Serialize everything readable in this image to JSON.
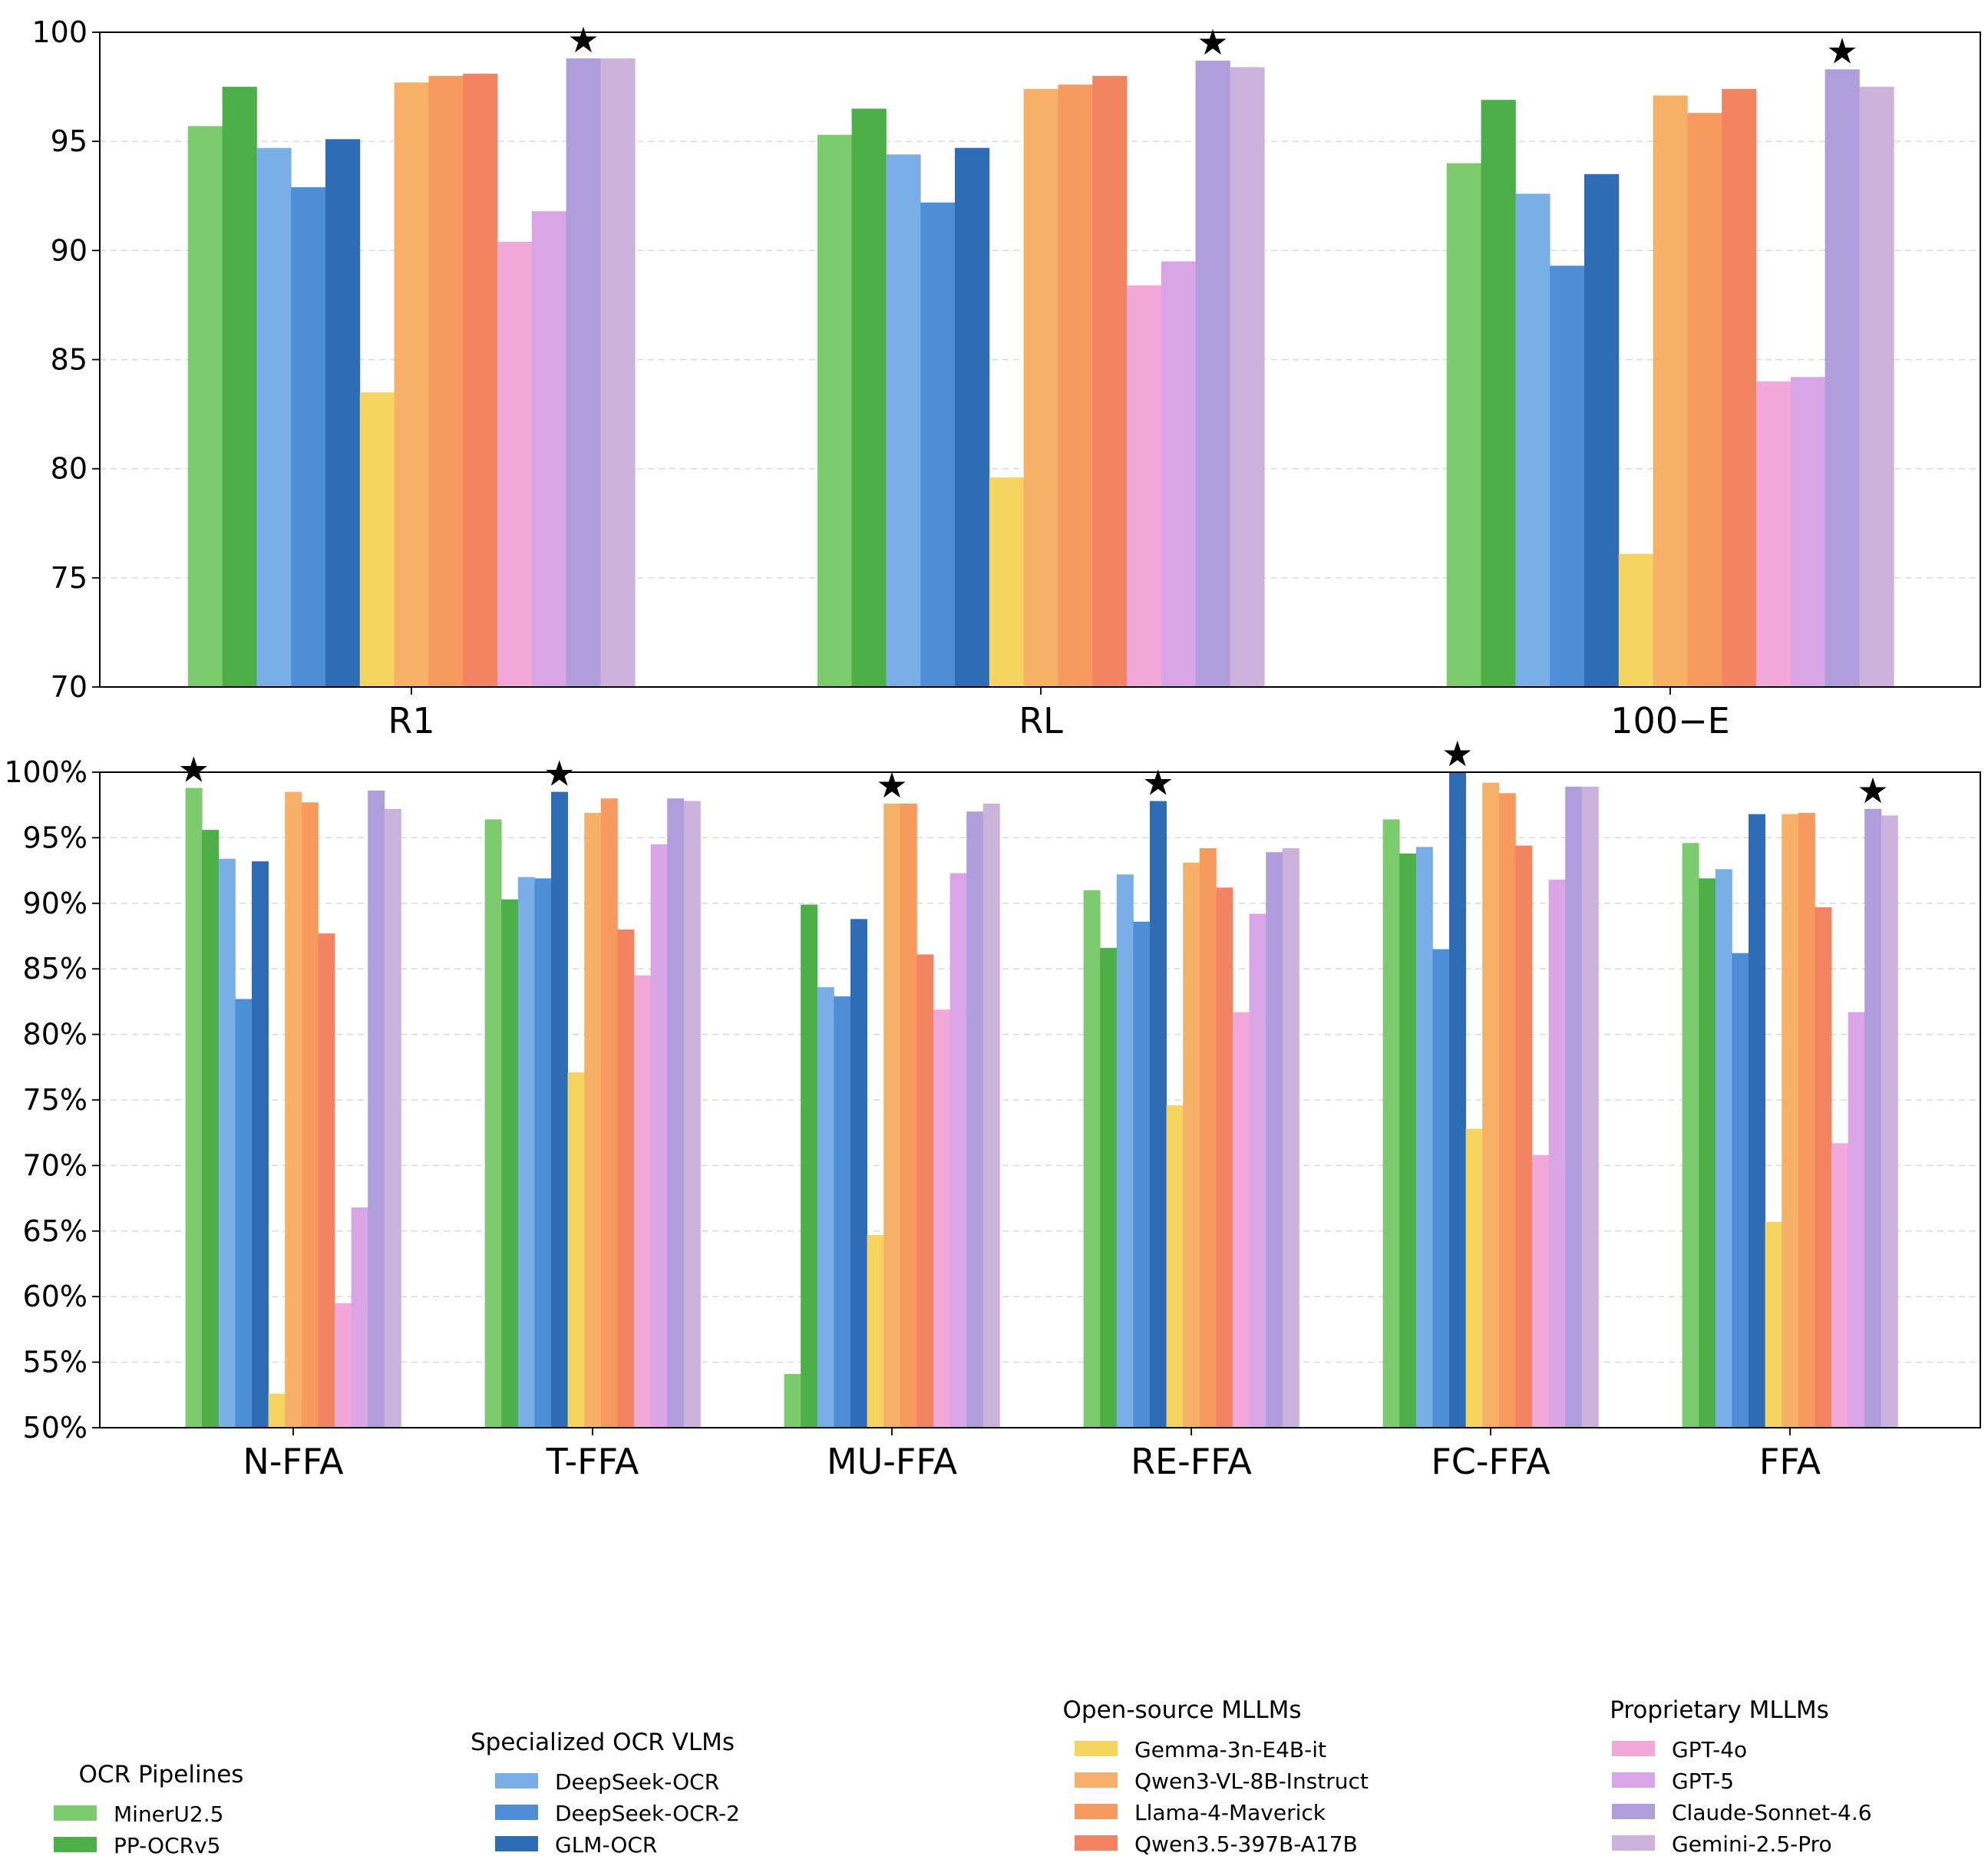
{
  "chart_data": [
    {
      "type": "bar",
      "categories": [
        "R1",
        "RL",
        "100−E"
      ],
      "ylim": [
        70,
        100
      ],
      "yticks": [
        70,
        75,
        80,
        85,
        90,
        95,
        100
      ],
      "grid": true,
      "series": [
        {
          "name": "MinerU2.5",
          "values": [
            95.7,
            95.3,
            94.0
          ]
        },
        {
          "name": "PP-OCRv5",
          "values": [
            97.5,
            96.5,
            96.9
          ]
        },
        {
          "name": "DeepSeek-OCR",
          "values": [
            94.7,
            94.4,
            92.6
          ]
        },
        {
          "name": "DeepSeek-OCR-2",
          "values": [
            92.9,
            92.2,
            89.3
          ]
        },
        {
          "name": "GLM-OCR",
          "values": [
            95.1,
            94.7,
            93.5
          ]
        },
        {
          "name": "Gemma-3n-E4B-it",
          "values": [
            83.5,
            79.6,
            76.1
          ]
        },
        {
          "name": "Qwen3-VL-8B-Instruct",
          "values": [
            97.7,
            97.4,
            97.1
          ]
        },
        {
          "name": "Llama-4-Maverick",
          "values": [
            98.0,
            97.6,
            96.3
          ]
        },
        {
          "name": "Qwen3.5-397B-A17B",
          "values": [
            98.1,
            98.0,
            97.4
          ]
        },
        {
          "name": "GPT-4o",
          "values": [
            90.4,
            88.4,
            84.0
          ]
        },
        {
          "name": "GPT-5",
          "values": [
            91.8,
            89.5,
            84.2
          ]
        },
        {
          "name": "Claude-Sonnet-4.6",
          "values": [
            98.8,
            98.7,
            98.3
          ]
        },
        {
          "name": "Gemini-2.5-Pro",
          "values": [
            98.8,
            98.4,
            97.5
          ]
        }
      ],
      "best_markers": [
        {
          "category": "R1",
          "series": "Claude-Sonnet-4.6",
          "symbol": "★"
        },
        {
          "category": "RL",
          "series": "Claude-Sonnet-4.6",
          "symbol": "★"
        },
        {
          "category": "100−E",
          "series": "Claude-Sonnet-4.6",
          "symbol": "★"
        }
      ]
    },
    {
      "type": "bar",
      "categories": [
        "N-FFA",
        "T-FFA",
        "MU-FFA",
        "RE-FFA",
        "FC-FFA",
        "FFA"
      ],
      "ylim": [
        50,
        100
      ],
      "yticks": [
        50,
        55,
        60,
        65,
        70,
        75,
        80,
        85,
        90,
        95,
        100
      ],
      "ytick_suffix": "%",
      "grid": true,
      "series": [
        {
          "name": "MinerU2.5",
          "values": [
            98.8,
            96.4,
            54.1,
            91.0,
            96.4,
            94.6
          ]
        },
        {
          "name": "PP-OCRv5",
          "values": [
            95.6,
            90.3,
            89.9,
            86.6,
            93.8,
            91.9
          ]
        },
        {
          "name": "DeepSeek-OCR",
          "values": [
            93.4,
            92.0,
            83.6,
            92.2,
            94.3,
            92.6
          ]
        },
        {
          "name": "DeepSeek-OCR-2",
          "values": [
            82.7,
            91.9,
            82.9,
            88.6,
            86.5,
            86.2
          ]
        },
        {
          "name": "GLM-OCR",
          "values": [
            93.2,
            98.5,
            88.8,
            97.8,
            100.0,
            96.8
          ]
        },
        {
          "name": "Gemma-3n-E4B-it",
          "values": [
            52.6,
            77.1,
            64.7,
            74.6,
            72.8,
            65.7
          ]
        },
        {
          "name": "Qwen3-VL-8B-Instruct",
          "values": [
            98.5,
            96.9,
            97.6,
            93.1,
            99.2,
            96.8
          ]
        },
        {
          "name": "Llama-4-Maverick",
          "values": [
            97.7,
            98.0,
            97.6,
            94.2,
            98.4,
            96.9
          ]
        },
        {
          "name": "Qwen3.5-397B-A17B",
          "values": [
            87.7,
            88.0,
            86.1,
            91.2,
            94.4,
            89.7
          ]
        },
        {
          "name": "GPT-4o",
          "values": [
            59.5,
            84.5,
            81.9,
            81.7,
            70.8,
            71.7
          ]
        },
        {
          "name": "GPT-5",
          "values": [
            66.8,
            94.5,
            92.3,
            89.2,
            91.8,
            81.7
          ]
        },
        {
          "name": "Claude-Sonnet-4.6",
          "values": [
            98.6,
            98.0,
            97.0,
            93.9,
            98.9,
            97.2
          ]
        },
        {
          "name": "Gemini-2.5-Pro",
          "values": [
            97.2,
            97.8,
            97.6,
            94.2,
            98.9,
            96.7
          ]
        }
      ],
      "best_markers": [
        {
          "category": "N-FFA",
          "series": "MinerU2.5",
          "symbol": "★"
        },
        {
          "category": "T-FFA",
          "series": "GLM-OCR",
          "symbol": "★"
        },
        {
          "category": "MU-FFA",
          "series": "Qwen3-VL-8B-Instruct",
          "symbol": "★"
        },
        {
          "category": "RE-FFA",
          "series": "GLM-OCR",
          "symbol": "★"
        },
        {
          "category": "FC-FFA",
          "series": "GLM-OCR",
          "symbol": "★"
        },
        {
          "category": "FFA",
          "series": "Claude-Sonnet-4.6",
          "symbol": "★"
        }
      ]
    }
  ],
  "legend": {
    "placement": "bottom",
    "groups": [
      {
        "title": "OCR Pipelines",
        "items": [
          "MinerU2.5",
          "PP-OCRv5"
        ]
      },
      {
        "title": "Specialized OCR VLMs",
        "items": [
          "DeepSeek-OCR",
          "DeepSeek-OCR-2",
          "GLM-OCR"
        ]
      },
      {
        "title": "Open-source MLLMs",
        "items": [
          "Gemma-3n-E4B-it",
          "Qwen3-VL-8B-Instruct",
          "Llama-4-Maverick",
          "Qwen3.5-397B-A17B"
        ]
      },
      {
        "title": "Proprietary MLLMs",
        "items": [
          "GPT-4o",
          "GPT-5",
          "Claude-Sonnet-4.6",
          "Gemini-2.5-Pro"
        ]
      }
    ]
  },
  "colors": {
    "MinerU2.5": "#7dcb6f",
    "PP-OCRv5": "#4caf47",
    "DeepSeek-OCR": "#7aaee6",
    "DeepSeek-OCR-2": "#4e8ed6",
    "GLM-OCR": "#2e6db6",
    "Gemma-3n-E4B-it": "#f5d45f",
    "Qwen3-VL-8B-Instruct": "#f7b068",
    "Llama-4-Maverick": "#f69a5e",
    "Qwen3.5-397B-A17B": "#f38462",
    "GPT-4o": "#f2a8d8",
    "GPT-5": "#d9a5e6",
    "Claude-Sonnet-4.6": "#b09ddb",
    "Gemini-2.5-Pro": "#ccb3dc"
  }
}
